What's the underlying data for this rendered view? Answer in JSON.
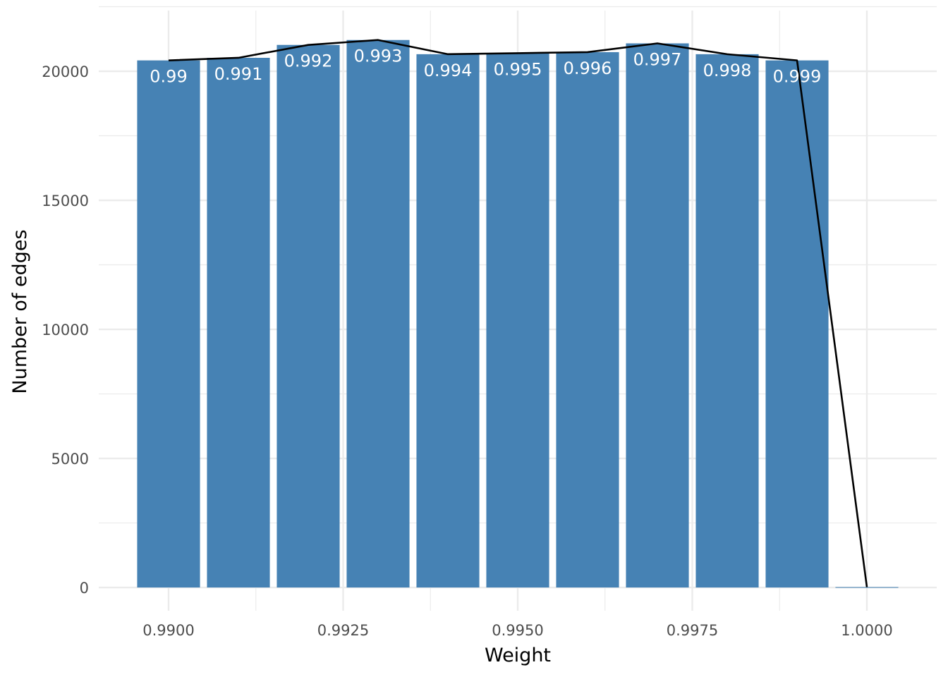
{
  "chart_data": {
    "type": "bar",
    "title": "",
    "xlabel": "Weight",
    "ylabel": "Number of edges",
    "x": [
      0.99,
      0.991,
      0.992,
      0.993,
      0.994,
      0.995,
      0.996,
      0.997,
      0.998,
      0.999,
      1.0
    ],
    "values": [
      20420,
      20520,
      21020,
      21210,
      20660,
      20700,
      20740,
      21080,
      20660,
      20420,
      15
    ],
    "bar_labels": [
      "0.99",
      "0.991",
      "0.992",
      "0.993",
      "0.994",
      "0.995",
      "0.996",
      "0.997",
      "0.998",
      "0.999",
      ""
    ],
    "overlay_line": {
      "type": "line",
      "color": "#000000",
      "x": [
        0.99,
        0.991,
        0.992,
        0.993,
        0.994,
        0.995,
        0.996,
        0.997,
        0.998,
        0.999,
        1.0
      ],
      "values": [
        20420,
        20520,
        21020,
        21210,
        20660,
        20700,
        20740,
        21080,
        20660,
        20420,
        15
      ]
    },
    "xlim": [
      0.989,
      1.001
    ],
    "ylim": [
      -900,
      22350
    ],
    "x_ticks": [
      0.99,
      0.9925,
      0.995,
      0.9975,
      1.0
    ],
    "x_tick_labels": [
      "0.9900",
      "0.9925",
      "0.9950",
      "0.9975",
      "1.0000"
    ],
    "y_ticks": [
      0,
      5000,
      10000,
      15000,
      20000
    ],
    "y_tick_labels": [
      "0",
      "5000",
      "10000",
      "15000",
      "20000"
    ],
    "bar_color": "#4682b4",
    "grid": true,
    "legend": "none"
  }
}
